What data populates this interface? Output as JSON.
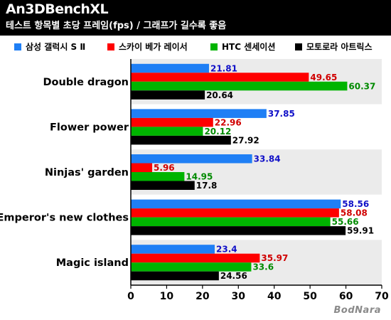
{
  "header": {
    "title": "An3DBenchXL",
    "subtitle": "테스트 항목별 초당 프레임(fps) / 그래프가 길수록 좋음"
  },
  "legend": [
    {
      "label": "삼성 갤럭시 S Ⅱ",
      "color": "#1f7ff5"
    },
    {
      "label": "스카이 베가 레이서",
      "color": "#ff0000"
    },
    {
      "label": "HTC 센세이션",
      "color": "#00b400"
    },
    {
      "label": "모토로라 아트릭스",
      "color": "#000000"
    }
  ],
  "watermark": "BodNara",
  "chart_data": {
    "type": "bar",
    "orientation": "horizontal",
    "title": "An3DBenchXL",
    "subtitle": "테스트 항목별 초당 프레임(fps) / 그래프가 길수록 좋음",
    "categories": [
      "Double dragon",
      "Flower power",
      "Ninjas' garden",
      "Emperor's new clothes",
      "Magic island"
    ],
    "series": [
      {
        "name": "삼성 갤럭시 S Ⅱ",
        "color": "#1f7ff5",
        "label_color": "#1010c8",
        "values": [
          21.81,
          37.85,
          33.84,
          58.56,
          23.4
        ]
      },
      {
        "name": "스카이 베가 레이서",
        "color": "#ff0000",
        "label_color": "#d00000",
        "values": [
          49.65,
          22.96,
          5.96,
          58.08,
          35.97
        ]
      },
      {
        "name": "HTC 센세이션",
        "color": "#00b400",
        "label_color": "#008a00",
        "values": [
          60.37,
          20.12,
          14.95,
          55.66,
          33.6
        ]
      },
      {
        "name": "모토로라 아트릭스",
        "color": "#000000",
        "label_color": "#000000",
        "values": [
          20.64,
          27.92,
          17.8,
          59.91,
          24.56
        ]
      }
    ],
    "value_labels": [
      [
        "21.81",
        "37.85",
        "33.84",
        "58.56",
        "23.4"
      ],
      [
        "49.65",
        "22.96",
        "5.96",
        "58.08",
        "35.97"
      ],
      [
        "60.37",
        "20.12",
        "14.95",
        "55.66",
        "33.6"
      ],
      [
        "20.64",
        "27.92",
        "17.8",
        "59.91",
        "24.56"
      ]
    ],
    "xlim": [
      0,
      70
    ],
    "xticks": [
      0,
      10,
      20,
      30,
      40,
      50,
      60,
      70
    ],
    "xtick_labels": [
      "0",
      "10",
      "20",
      "30",
      "40",
      "50",
      "60",
      "70"
    ],
    "alternating_band_colors": [
      "#ebebeb",
      "#ffffff"
    ],
    "grid": false,
    "legend_position": "top"
  }
}
